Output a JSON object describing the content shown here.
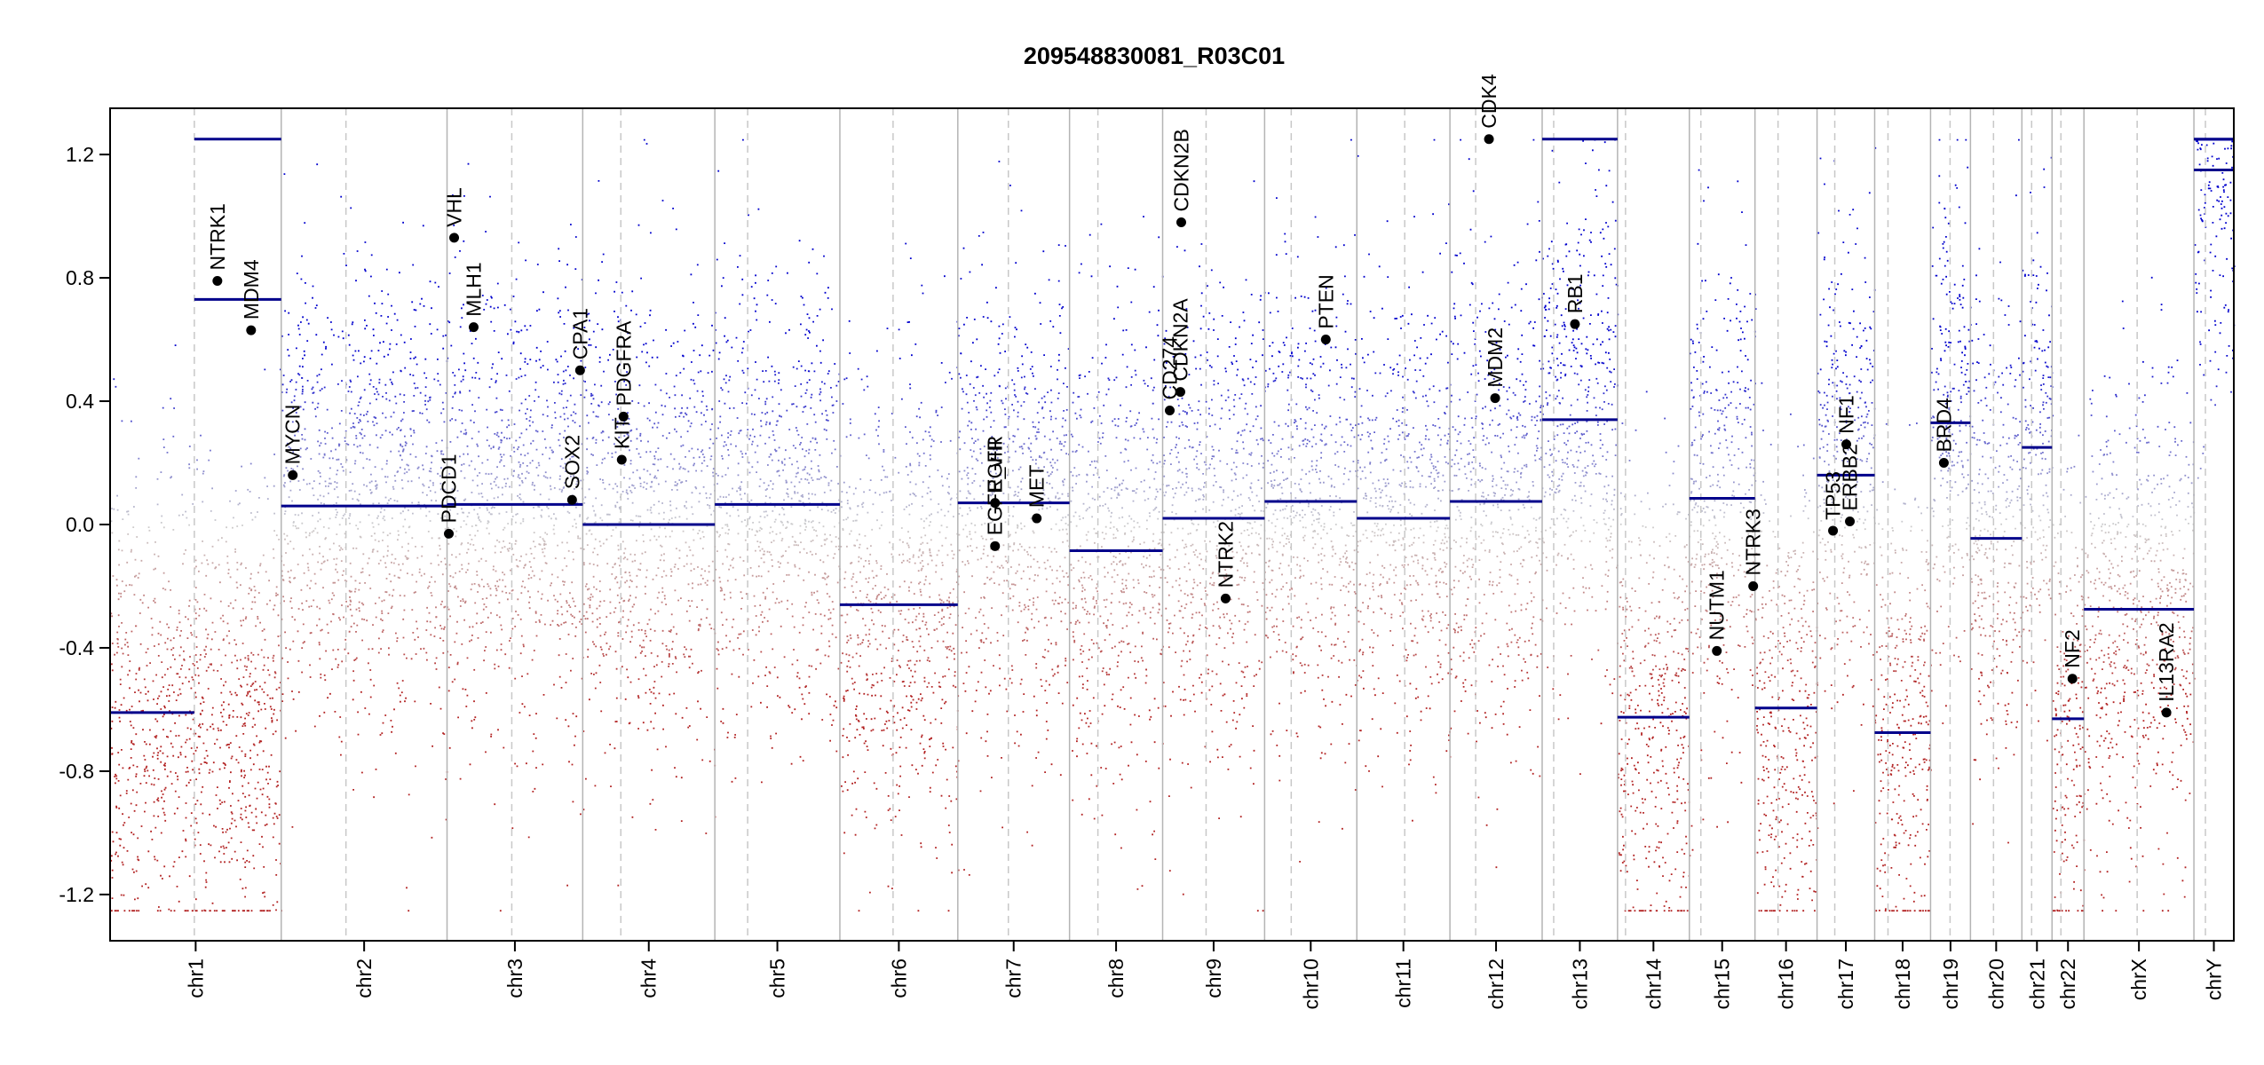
{
  "chart_data": {
    "type": "scatter",
    "title": "209548830081_R03C01",
    "xlabel": "",
    "ylabel": "",
    "ylim": [
      -1.35,
      1.35
    ],
    "yticks": [
      -1.2,
      -0.8,
      -0.4,
      0.0,
      0.4,
      0.8,
      1.2
    ],
    "ytick_labels": [
      "-1.2",
      "-0.8",
      "-0.4",
      "0.0",
      "0.4",
      "0.8",
      "1.2"
    ],
    "xlim": [
      0,
      2395
    ],
    "colors": {
      "segment": "#00008b",
      "gene_point": "#000000",
      "gain": "#0000cd",
      "loss": "#b22222",
      "separator": "#b4b4b4"
    },
    "chromosomes": [
      {
        "name": "chr1",
        "start": 0,
        "end": 193,
        "centromere": 95
      },
      {
        "name": "chr2",
        "start": 193,
        "end": 380,
        "centromere": 266
      },
      {
        "name": "chr3",
        "start": 380,
        "end": 533,
        "centromere": 453
      },
      {
        "name": "chr4",
        "start": 533,
        "end": 682,
        "centromere": 576
      },
      {
        "name": "chr5",
        "start": 682,
        "end": 823,
        "centromere": 719
      },
      {
        "name": "chr6",
        "start": 823,
        "end": 956,
        "centromere": 883
      },
      {
        "name": "chr7",
        "start": 956,
        "end": 1082,
        "centromere": 1013
      },
      {
        "name": "chr8",
        "start": 1082,
        "end": 1187,
        "centromere": 1114
      },
      {
        "name": "chr9",
        "start": 1187,
        "end": 1302,
        "centromere": 1236
      },
      {
        "name": "chr10",
        "start": 1302,
        "end": 1406,
        "centromere": 1332
      },
      {
        "name": "chr11",
        "start": 1406,
        "end": 1511,
        "centromere": 1460
      },
      {
        "name": "chr12",
        "start": 1511,
        "end": 1615,
        "centromere": 1540
      },
      {
        "name": "chr13",
        "start": 1615,
        "end": 1700,
        "centromere": 1628
      },
      {
        "name": "chr14",
        "start": 1700,
        "end": 1781,
        "centromere": 1709
      },
      {
        "name": "chr15",
        "start": 1781,
        "end": 1855,
        "centromere": 1794
      },
      {
        "name": "chr16",
        "start": 1855,
        "end": 1925,
        "centromere": 1881
      },
      {
        "name": "chr17",
        "start": 1925,
        "end": 1990,
        "centromere": 1945
      },
      {
        "name": "chr18",
        "start": 1990,
        "end": 2053,
        "centromere": 2005
      },
      {
        "name": "chr19",
        "start": 2053,
        "end": 2098,
        "centromere": 2075
      },
      {
        "name": "chr20",
        "start": 2098,
        "end": 2156,
        "centromere": 2124
      },
      {
        "name": "chr21",
        "start": 2156,
        "end": 2190,
        "centromere": 2167
      },
      {
        "name": "chr22",
        "start": 2190,
        "end": 2226,
        "centromere": 2200
      },
      {
        "name": "chrX",
        "start": 2226,
        "end": 2350,
        "centromere": 2286
      },
      {
        "name": "chrY",
        "start": 2350,
        "end": 2395,
        "centromere": 2363
      }
    ],
    "segments": [
      {
        "x0": 0,
        "x1": 95,
        "y": -0.61
      },
      {
        "x0": 95,
        "x1": 193,
        "y": 0.73
      },
      {
        "x0": 95,
        "x1": 193,
        "y": 1.25
      },
      {
        "x0": 193,
        "x1": 380,
        "y": 0.06
      },
      {
        "x0": 380,
        "x1": 533,
        "y": 0.065
      },
      {
        "x0": 533,
        "x1": 682,
        "y": 0.0
      },
      {
        "x0": 682,
        "x1": 823,
        "y": 0.065
      },
      {
        "x0": 823,
        "x1": 956,
        "y": -0.26
      },
      {
        "x0": 956,
        "x1": 1082,
        "y": 0.07
      },
      {
        "x0": 1082,
        "x1": 1187,
        "y": -0.085
      },
      {
        "x0": 1187,
        "x1": 1302,
        "y": 0.02
      },
      {
        "x0": 1302,
        "x1": 1406,
        "y": 0.075
      },
      {
        "x0": 1406,
        "x1": 1511,
        "y": 0.02
      },
      {
        "x0": 1511,
        "x1": 1615,
        "y": 0.075
      },
      {
        "x0": 1615,
        "x1": 1700,
        "y": 0.34
      },
      {
        "x0": 1615,
        "x1": 1700,
        "y": 1.25
      },
      {
        "x0": 1700,
        "x1": 1781,
        "y": -0.625
      },
      {
        "x0": 1781,
        "x1": 1855,
        "y": 0.085
      },
      {
        "x0": 1855,
        "x1": 1925,
        "y": -0.595
      },
      {
        "x0": 1925,
        "x1": 1990,
        "y": 0.16
      },
      {
        "x0": 1990,
        "x1": 2053,
        "y": -0.675
      },
      {
        "x0": 2053,
        "x1": 2098,
        "y": 0.33
      },
      {
        "x0": 2098,
        "x1": 2156,
        "y": -0.045
      },
      {
        "x0": 2156,
        "x1": 2190,
        "y": 0.25
      },
      {
        "x0": 2190,
        "x1": 2226,
        "y": -0.63
      },
      {
        "x0": 2226,
        "x1": 2350,
        "y": -0.275
      },
      {
        "x0": 2350,
        "x1": 2395,
        "y": 1.15
      },
      {
        "x0": 2350,
        "x1": 2395,
        "y": 1.25
      }
    ],
    "genes": [
      {
        "name": "NTRK1",
        "x": 121,
        "y": 0.79
      },
      {
        "name": "MDM4",
        "x": 159,
        "y": 0.63
      },
      {
        "name": "MYCN",
        "x": 206,
        "y": 0.16
      },
      {
        "name": "PDCD1",
        "x": 382,
        "y": -0.03
      },
      {
        "name": "VHL",
        "x": 388,
        "y": 0.93
      },
      {
        "name": "MLH1",
        "x": 410,
        "y": 0.64
      },
      {
        "name": "SOX2",
        "x": 521,
        "y": 0.08
      },
      {
        "name": "CPA1",
        "x": 530,
        "y": 0.5
      },
      {
        "name": "KIT",
        "x": 577,
        "y": 0.21
      },
      {
        "name": "PDGFRA",
        "x": 579,
        "y": 0.35
      },
      {
        "name": "EGFR",
        "x": 998,
        "y": 0.07
      },
      {
        "name": "EGFR_vIII",
        "x": 998,
        "y": -0.07
      },
      {
        "name": "MET",
        "x": 1045,
        "y": 0.02
      },
      {
        "name": "CD274",
        "x": 1195,
        "y": 0.37
      },
      {
        "name": "CDKN2A",
        "x": 1207,
        "y": 0.43
      },
      {
        "name": "CDKN2B",
        "x": 1208,
        "y": 0.98
      },
      {
        "name": "NTRK2",
        "x": 1258,
        "y": -0.24
      },
      {
        "name": "PTEN",
        "x": 1371,
        "y": 0.6
      },
      {
        "name": "CDK4",
        "x": 1555,
        "y": 1.25
      },
      {
        "name": "MDM2",
        "x": 1562,
        "y": 0.41
      },
      {
        "name": "RB1",
        "x": 1652,
        "y": 0.65
      },
      {
        "name": "NUTM1",
        "x": 1812,
        "y": -0.41
      },
      {
        "name": "NTRK3",
        "x": 1853,
        "y": -0.2
      },
      {
        "name": "TP53",
        "x": 1943,
        "y": -0.02
      },
      {
        "name": "ERBB2",
        "x": 1962,
        "y": 0.01
      },
      {
        "name": "NF1",
        "x": 1958,
        "y": 0.26
      },
      {
        "name": "BRD4",
        "x": 2068,
        "y": 0.2
      },
      {
        "name": "NF2",
        "x": 2213,
        "y": -0.5
      },
      {
        "name": "IL13RA2",
        "x": 2319,
        "y": -0.61
      }
    ]
  }
}
